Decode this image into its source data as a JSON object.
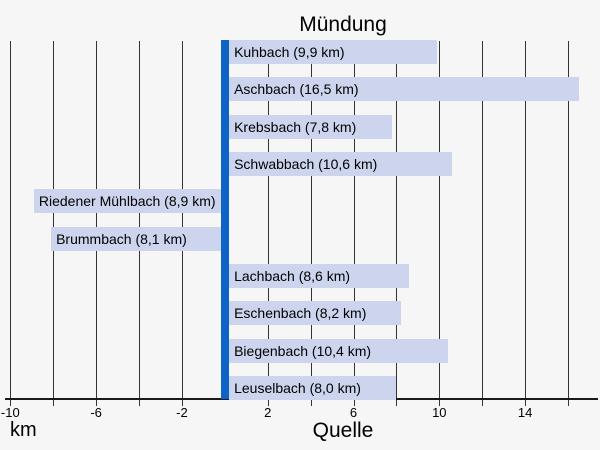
{
  "chart_data": {
    "type": "bar",
    "orientation": "horizontal-diverging",
    "top_axis_title": "Mündung",
    "bottom_axis_title": "Quelle",
    "unit_label": "km",
    "x_ticks_labeled": [
      -10,
      -6,
      -2,
      2,
      6,
      10,
      14
    ],
    "grid_step_km": 2,
    "grid_range_km": [
      -10,
      16
    ],
    "xlim_km": [
      -10.5,
      17.5
    ],
    "bars": [
      {
        "name": "Kuhbach",
        "length_km": 9.9,
        "direction": "right",
        "label": "Kuhbach (9,9 km)"
      },
      {
        "name": "Aschbach",
        "length_km": 16.5,
        "direction": "right",
        "label": "Aschbach (16,5 km)"
      },
      {
        "name": "Krebsbach",
        "length_km": 7.8,
        "direction": "right",
        "label": "Krebsbach (7,8 km)"
      },
      {
        "name": "Schwabbach",
        "length_km": 10.6,
        "direction": "right",
        "label": "Schwabbach (10,6 km)"
      },
      {
        "name": "Riedener Mühlbach",
        "length_km": 8.9,
        "direction": "left",
        "label": "Riedener Mühlbach (8,9 km)"
      },
      {
        "name": "Brummbach",
        "length_km": 8.1,
        "direction": "left",
        "label": "Brummbach (8,1 km)"
      },
      {
        "name": "Lachbach",
        "length_km": 8.6,
        "direction": "right",
        "label": "Lachbach (8,6 km)"
      },
      {
        "name": "Eschenbach",
        "length_km": 8.2,
        "direction": "right",
        "label": "Eschenbach (8,2 km)"
      },
      {
        "name": "Biegenbach",
        "length_km": 10.4,
        "direction": "right",
        "label": "Biegenbach (10,4 km)"
      },
      {
        "name": "Leuselbach",
        "length_km": 8.0,
        "direction": "right",
        "label": "Leuselbach (8,0 km)"
      }
    ]
  },
  "colors": {
    "background": "#f6f6f6",
    "bar_fill": "#cdd5ee",
    "center_bar": "#0d63c6",
    "gridline": "#333333",
    "axis_line": "#1a1a1a",
    "text": "#000000"
  }
}
